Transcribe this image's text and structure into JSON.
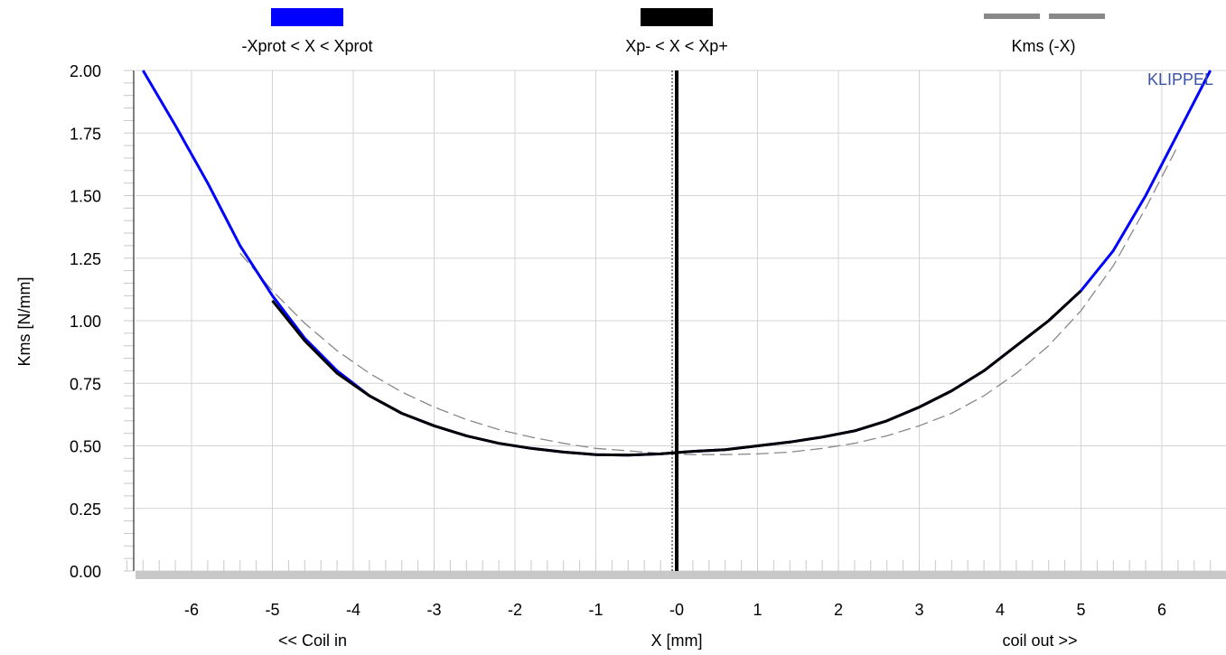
{
  "chart_data": {
    "type": "line",
    "title": "",
    "xlabel": "X [mm]",
    "xlabel_left": "<< Coil in",
    "xlabel_right": "coil out >>",
    "ylabel": "Kms [N/mm]",
    "brand": "KLIPPEL",
    "xlim": [
      -7.0,
      6.8
    ],
    "ylim": [
      0,
      2.0
    ],
    "xticks": [
      -6,
      -5,
      -4,
      -3,
      -2,
      -1,
      0,
      1,
      2,
      3,
      4,
      5,
      6
    ],
    "xtick_labels": [
      "-6",
      "-5",
      "-4",
      "-3",
      "-2",
      "-1",
      "-0",
      "1",
      "2",
      "3",
      "4",
      "5",
      "6"
    ],
    "yticks": [
      0,
      0.25,
      0.5,
      0.75,
      1.0,
      1.25,
      1.5,
      1.75,
      2.0
    ],
    "ytick_labels": [
      "0.00",
      "0.25",
      "0.50",
      "0.75",
      "1.00",
      "1.25",
      "1.50",
      "1.75",
      "2.00"
    ],
    "grid": true,
    "legend_position": "top",
    "marker_line_x": 0,
    "series": [
      {
        "name": "-Xprot < X < Xprot",
        "color": "#0000ff",
        "style": "solid",
        "x": [
          -6.6,
          -6.2,
          -5.8,
          -5.4,
          -5.0,
          -4.6,
          -4.2,
          -3.8,
          -3.4,
          -3.0,
          -2.6,
          -2.2,
          -1.8,
          -1.4,
          -1.0,
          -0.6,
          -0.2,
          0.2,
          0.6,
          1.0,
          1.4,
          1.8,
          2.2,
          2.6,
          3.0,
          3.4,
          3.8,
          4.2,
          4.6,
          5.0,
          5.4,
          5.8,
          6.2,
          6.6
        ],
        "y": [
          2.0,
          1.78,
          1.55,
          1.3,
          1.1,
          0.93,
          0.8,
          0.7,
          0.63,
          0.58,
          0.54,
          0.51,
          0.49,
          0.475,
          0.465,
          0.463,
          0.468,
          0.478,
          0.485,
          0.5,
          0.515,
          0.535,
          0.56,
          0.6,
          0.655,
          0.72,
          0.8,
          0.9,
          1.0,
          1.12,
          1.28,
          1.5,
          1.75,
          2.0
        ]
      },
      {
        "name": "Xp- < X < Xp+",
        "color": "#000000",
        "style": "solid",
        "x": [
          -5.0,
          -4.6,
          -4.2,
          -3.8,
          -3.4,
          -3.0,
          -2.6,
          -2.2,
          -1.8,
          -1.4,
          -1.0,
          -0.6,
          -0.2,
          0.2,
          0.6,
          1.0,
          1.4,
          1.8,
          2.2,
          2.6,
          3.0,
          3.4,
          3.8,
          4.2,
          4.6,
          5.0
        ],
        "y": [
          1.08,
          0.92,
          0.79,
          0.7,
          0.63,
          0.58,
          0.54,
          0.51,
          0.49,
          0.475,
          0.465,
          0.463,
          0.468,
          0.478,
          0.485,
          0.5,
          0.515,
          0.535,
          0.56,
          0.6,
          0.655,
          0.72,
          0.8,
          0.9,
          1.0,
          1.12
        ]
      },
      {
        "name": "Kms (-X)",
        "color": "#888888",
        "style": "dashed",
        "x": [
          -5.4,
          -5.0,
          -4.6,
          -4.2,
          -3.8,
          -3.4,
          -3.0,
          -2.6,
          -2.2,
          -1.8,
          -1.4,
          -1.0,
          -0.6,
          -0.2,
          0.2,
          0.6,
          1.0,
          1.4,
          1.8,
          2.2,
          2.6,
          3.0,
          3.4,
          3.8,
          4.2,
          4.6,
          5.0,
          5.4,
          5.8,
          6.2
        ],
        "y": [
          1.27,
          1.12,
          0.99,
          0.88,
          0.79,
          0.715,
          0.655,
          0.605,
          0.565,
          0.535,
          0.51,
          0.49,
          0.48,
          0.47,
          0.465,
          0.465,
          0.468,
          0.475,
          0.49,
          0.51,
          0.54,
          0.58,
          0.63,
          0.7,
          0.79,
          0.9,
          1.04,
          1.22,
          1.45,
          1.7
        ]
      }
    ]
  }
}
